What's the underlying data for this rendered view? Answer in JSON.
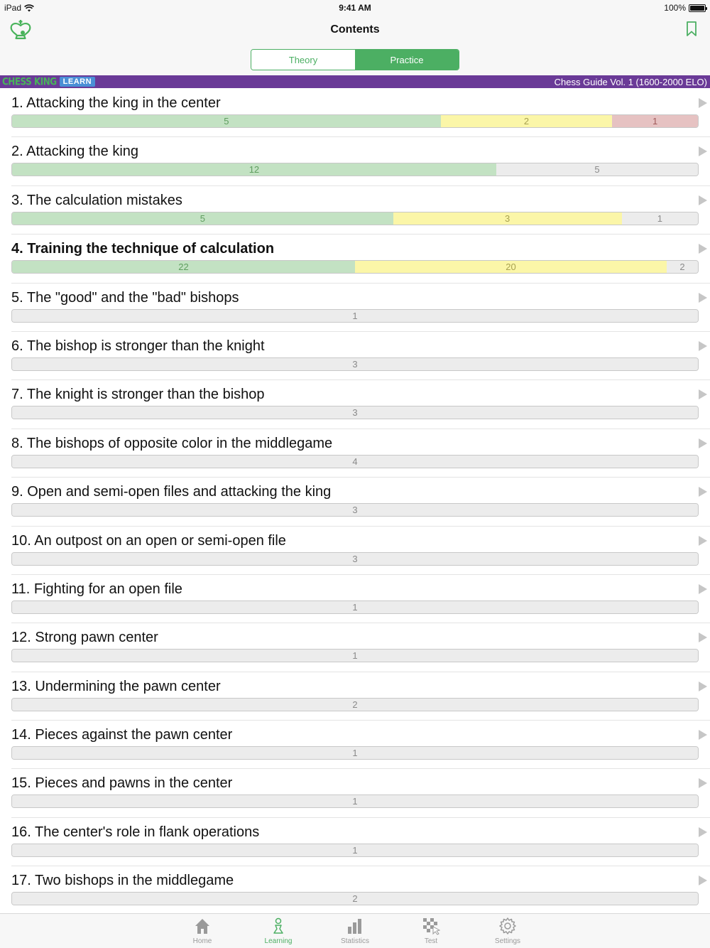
{
  "status_bar": {
    "device": "iPad",
    "time": "9:41 AM",
    "battery": "100%"
  },
  "header": {
    "title": "Contents",
    "segments": [
      {
        "label": "Theory",
        "selected": false
      },
      {
        "label": "Practice",
        "selected": true
      }
    ]
  },
  "banner": {
    "brand": "CHESS KING",
    "badge": "LEARN",
    "course_title": "Chess Guide Vol. 1 (1600-2000 ELO)"
  },
  "chapters": [
    {
      "title": "1. Attacking the king in the center",
      "bold": false,
      "solved": 5,
      "partial": 2,
      "failed": 1,
      "unsolved": 0
    },
    {
      "title": "2. Attacking the king",
      "bold": false,
      "solved": 12,
      "partial": 0,
      "failed": 0,
      "unsolved": 5
    },
    {
      "title": "3. The calculation mistakes",
      "bold": false,
      "solved": 5,
      "partial": 3,
      "failed": 0,
      "unsolved": 1
    },
    {
      "title": "4. Training the technique of calculation",
      "bold": true,
      "solved": 22,
      "partial": 20,
      "failed": 0,
      "unsolved": 2
    },
    {
      "title": "5. The \"good\" and the \"bad\" bishops",
      "bold": false,
      "solved": 0,
      "partial": 0,
      "failed": 0,
      "unsolved": 1
    },
    {
      "title": "6. The bishop is stronger than the knight",
      "bold": false,
      "solved": 0,
      "partial": 0,
      "failed": 0,
      "unsolved": 3
    },
    {
      "title": "7. The knight is stronger than the bishop",
      "bold": false,
      "solved": 0,
      "partial": 0,
      "failed": 0,
      "unsolved": 3
    },
    {
      "title": "8. The bishops of opposite color in the middlegame",
      "bold": false,
      "solved": 0,
      "partial": 0,
      "failed": 0,
      "unsolved": 4
    },
    {
      "title": "9. Open and semi-open files and attacking the king",
      "bold": false,
      "solved": 0,
      "partial": 0,
      "failed": 0,
      "unsolved": 3
    },
    {
      "title": "10. An outpost on an open or semi-open file",
      "bold": false,
      "solved": 0,
      "partial": 0,
      "failed": 0,
      "unsolved": 3
    },
    {
      "title": "11. Fighting for an open file",
      "bold": false,
      "solved": 0,
      "partial": 0,
      "failed": 0,
      "unsolved": 1
    },
    {
      "title": "12. Strong pawn center",
      "bold": false,
      "solved": 0,
      "partial": 0,
      "failed": 0,
      "unsolved": 1
    },
    {
      "title": "13. Undermining the pawn center",
      "bold": false,
      "solved": 0,
      "partial": 0,
      "failed": 0,
      "unsolved": 2
    },
    {
      "title": "14. Pieces against the pawn center",
      "bold": false,
      "solved": 0,
      "partial": 0,
      "failed": 0,
      "unsolved": 1
    },
    {
      "title": "15. Pieces and pawns in the center",
      "bold": false,
      "solved": 0,
      "partial": 0,
      "failed": 0,
      "unsolved": 1
    },
    {
      "title": "16. The center's role in flank operations",
      "bold": false,
      "solved": 0,
      "partial": 0,
      "failed": 0,
      "unsolved": 1
    },
    {
      "title": "17. Two bishops in the middlegame",
      "bold": false,
      "solved": 0,
      "partial": 0,
      "failed": 0,
      "unsolved": 2
    }
  ],
  "tab_bar": {
    "tabs": [
      {
        "label": "Home",
        "icon": "home-icon",
        "active": false
      },
      {
        "label": "Learning",
        "icon": "learning-icon",
        "active": true
      },
      {
        "label": "Statistics",
        "icon": "statistics-icon",
        "active": false
      },
      {
        "label": "Test",
        "icon": "test-icon",
        "active": false
      },
      {
        "label": "Settings",
        "icon": "settings-icon",
        "active": false
      }
    ]
  },
  "colors": {
    "accent": "#4caf63",
    "banner": "#6a3a97",
    "solved": "#c3e2c3",
    "partial": "#fbf6a8",
    "failed": "#e6c2c2",
    "unsolved": "#ececec"
  }
}
